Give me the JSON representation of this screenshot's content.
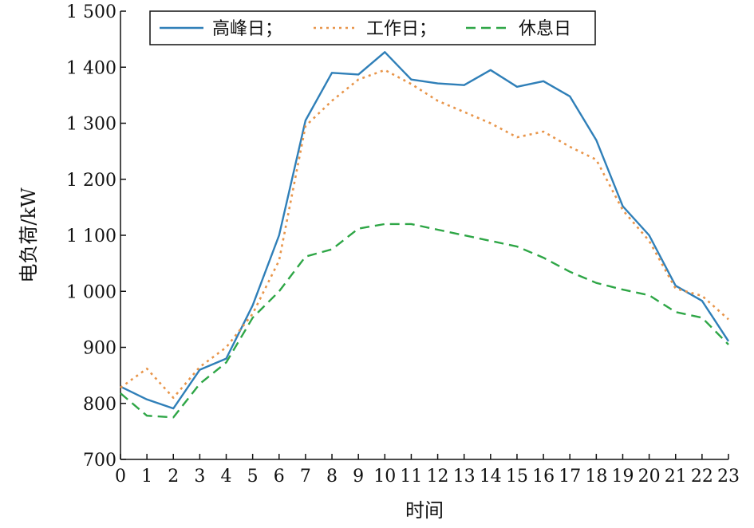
{
  "chart_data": {
    "type": "line",
    "title": "",
    "xlabel": "时间",
    "ylabel": "电负荷/kW",
    "x": [
      0,
      1,
      2,
      3,
      4,
      5,
      6,
      7,
      8,
      9,
      10,
      11,
      12,
      13,
      14,
      15,
      16,
      17,
      18,
      19,
      20,
      21,
      22,
      23
    ],
    "x_tick_labels": [
      "0",
      "1",
      "2",
      "3",
      "4",
      "5",
      "6",
      "7",
      "8",
      "9",
      "10",
      "11",
      "12",
      "13",
      "14",
      "15",
      "16",
      "17",
      "18",
      "19",
      "20",
      "21",
      "22",
      "23"
    ],
    "xlim": [
      0,
      23
    ],
    "ylim": [
      700,
      1500
    ],
    "y_ticks": [
      700,
      800,
      900,
      1000,
      1100,
      1200,
      1300,
      1400,
      1500
    ],
    "y_tick_labels": [
      "700",
      "800",
      "900",
      "1 000",
      "1 100",
      "1 200",
      "1 300",
      "1 400",
      "1 500"
    ],
    "grid": false,
    "legend_position": "top",
    "series": [
      {
        "name": "高峰日；",
        "color": "#2f7fb8",
        "style": "solid",
        "values": [
          830,
          807,
          791,
          860,
          880,
          975,
          1100,
          1305,
          1390,
          1387,
          1427,
          1378,
          1371,
          1368,
          1395,
          1365,
          1375,
          1348,
          1270,
          1152,
          1100,
          1010,
          983,
          911
        ]
      },
      {
        "name": "工作日；",
        "color": "#e8954a",
        "style": "dotted",
        "values": [
          828,
          862,
          810,
          865,
          900,
          960,
          1055,
          1295,
          1340,
          1378,
          1395,
          1370,
          1340,
          1320,
          1300,
          1275,
          1285,
          1258,
          1235,
          1145,
          1090,
          1005,
          992,
          950
        ]
      },
      {
        "name": "休息日",
        "color": "#2ea646",
        "style": "dashed",
        "values": [
          818,
          778,
          775,
          835,
          873,
          953,
          1000,
          1062,
          1075,
          1112,
          1120,
          1120,
          1110,
          1100,
          1090,
          1080,
          1060,
          1035,
          1015,
          1003,
          993,
          963,
          953,
          905
        ]
      }
    ]
  }
}
